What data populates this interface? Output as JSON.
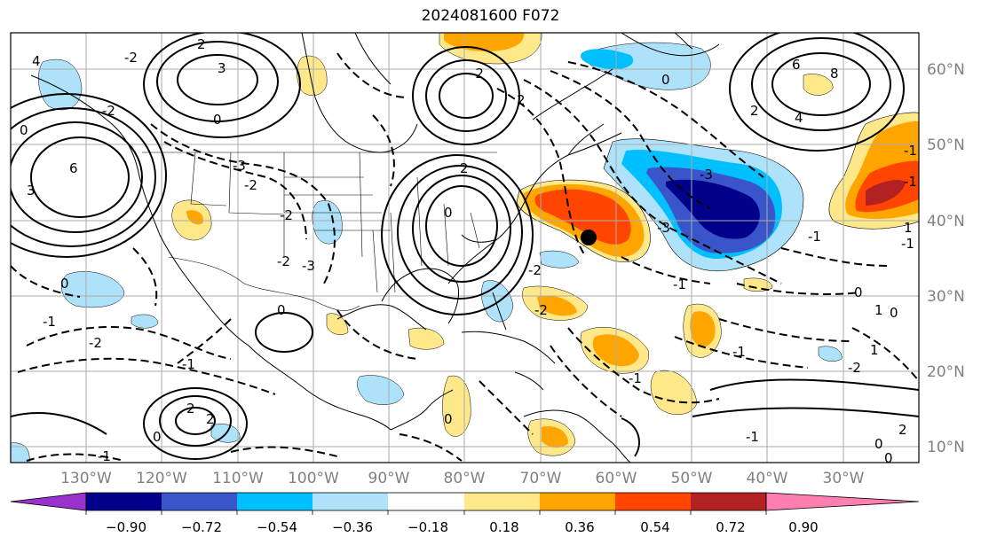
{
  "title": "2024081600 F072",
  "lat_labels": [
    "60°N",
    "50°N",
    "40°N",
    "30°N",
    "20°N",
    "10°N"
  ],
  "lon_labels": [
    "130°W",
    "120°W",
    "110°W",
    "100°W",
    "90°W",
    "80°W",
    "70°W",
    "60°W",
    "50°W",
    "40°W",
    "30°W"
  ],
  "colorbar": {
    "ticks": [
      "−0.90",
      "−0.72",
      "−0.54",
      "−0.36",
      "−0.18",
      "0.18",
      "0.36",
      "0.54",
      "0.72",
      "0.90"
    ],
    "colors": [
      "#9932cc",
      "#00008b",
      "#3a55c9",
      "#00bfff",
      "#aee2fa",
      "#ffffff",
      "#ffe88a",
      "#ffa500",
      "#ff4500",
      "#b22222",
      "#ff80b0"
    ]
  },
  "contour_labels": [
    "4",
    "-2",
    "3",
    "2",
    "0",
    "6",
    "-2",
    "3",
    "0",
    "-3",
    "-2",
    "2",
    "-2",
    "0",
    "-2",
    "-1",
    "-2",
    "-1",
    "0",
    "2",
    "-3",
    "-2",
    "0",
    "2",
    "-2",
    "-3",
    "-1",
    "0",
    "2",
    "4",
    "6",
    "8",
    "-3",
    "-1",
    "0",
    "-1",
    "-2",
    "0",
    "-1",
    "1",
    "-1",
    "2",
    "0",
    "-1",
    "0",
    "0",
    "-2",
    "2",
    "1",
    "0",
    "-1",
    "1",
    "-1",
    "-1"
  ],
  "marker": "storm-position-dot"
}
